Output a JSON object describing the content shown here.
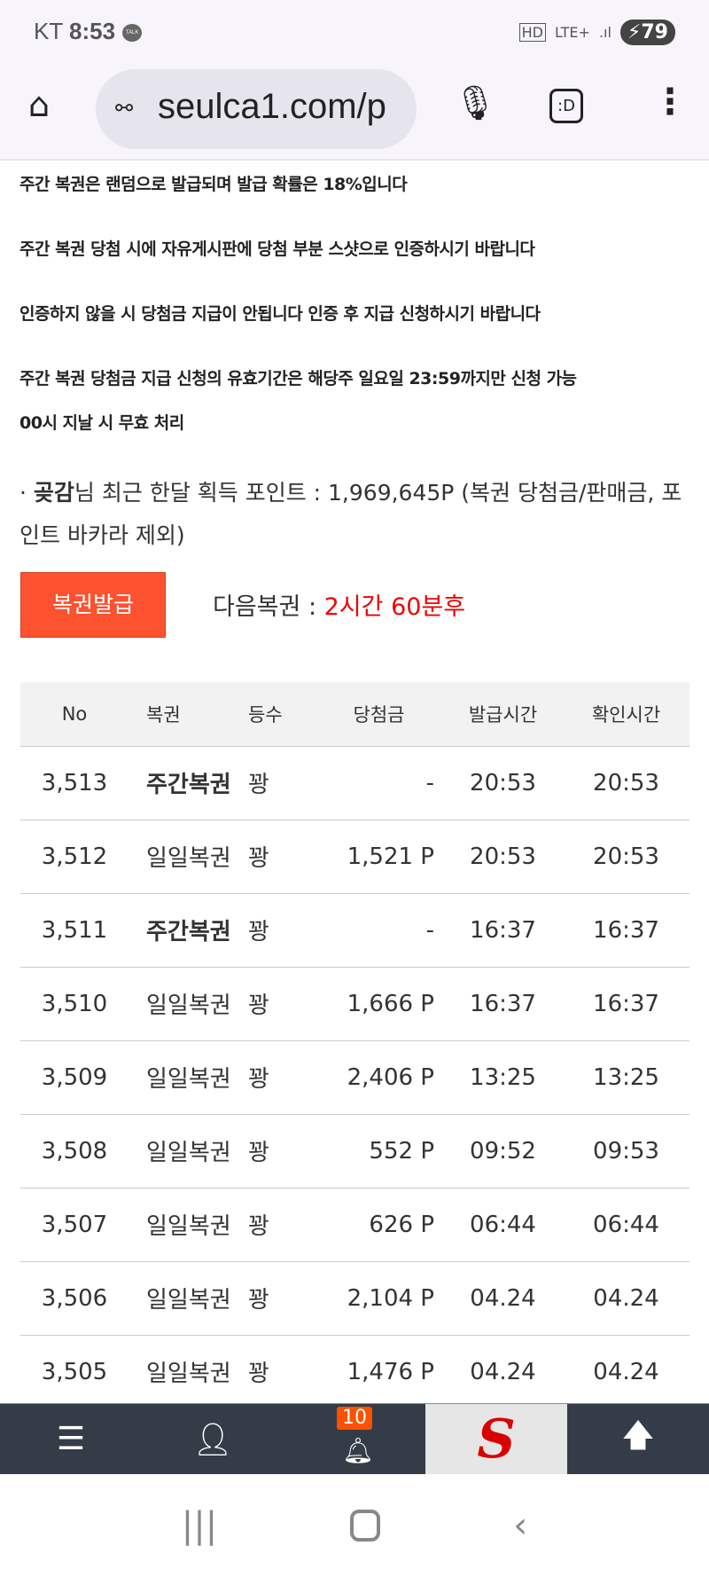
{
  "status": {
    "carrier": "KT",
    "time": "8:53",
    "talk": "TALK",
    "hd": "HD",
    "network": "LTE+",
    "battery": "79"
  },
  "browser": {
    "url": "seulca1.com/p"
  },
  "notices": [
    "주간 복권은 랜덤으로 발급되며 발급 확률은 18%입니다",
    "주간 복권 당첨 시에 자유게시판에 당첨 부분 스샷으로 인증하시기 바랍니다",
    "인증하지 않을 시 당첨금 지급이 안됩니다 인증 후 지급 신청하시기 바랍니다",
    "주간 복권 당첨금 지급 신청의 유효기간은 해당주 일요일 23:59까지만 신청 가능",
    "00시 지날 시 무효 처리"
  ],
  "points": {
    "prefix": "· ",
    "user": "곶감",
    "text": "님 최근 한달 획득 포인트 : 1,969,645P (복권 당첨금/판매금, 포인트 바카라 제외)"
  },
  "issue_button": "복권발급",
  "next": {
    "label": "다음복권 : ",
    "value": "2시간 60분후"
  },
  "table": {
    "headers": [
      "No",
      "복권",
      "등수",
      "당첨금",
      "발급시간",
      "확인시간"
    ],
    "rows": [
      [
        "3,513",
        "주간복권",
        "꽝",
        "-",
        "20:53",
        "20:53"
      ],
      [
        "3,512",
        "일일복권",
        "꽝",
        "1,521 P",
        "20:53",
        "20:53"
      ],
      [
        "3,511",
        "주간복권",
        "꽝",
        "-",
        "16:37",
        "16:37"
      ],
      [
        "3,510",
        "일일복권",
        "꽝",
        "1,666 P",
        "16:37",
        "16:37"
      ],
      [
        "3,509",
        "일일복권",
        "꽝",
        "2,406 P",
        "13:25",
        "13:25"
      ],
      [
        "3,508",
        "일일복권",
        "꽝",
        "552 P",
        "09:52",
        "09:53"
      ],
      [
        "3,507",
        "일일복권",
        "꽝",
        "626 P",
        "06:44",
        "06:44"
      ],
      [
        "3,506",
        "일일복권",
        "꽝",
        "2,104 P",
        "04.24",
        "04.24"
      ],
      [
        "3,505",
        "일일복권",
        "꽝",
        "1,476 P",
        "04.24",
        "04.24"
      ]
    ]
  },
  "bottom_nav": {
    "notification_count": "10"
  },
  "colors": {
    "accent": "#fc5230",
    "red": "#ee0000",
    "bar": "#333c47"
  }
}
